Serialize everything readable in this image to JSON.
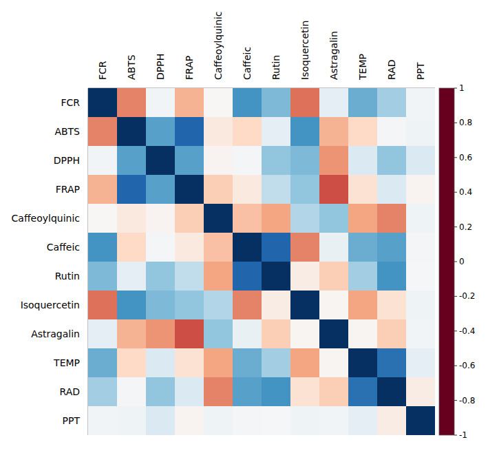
{
  "chart_data": {
    "type": "heatmap",
    "variables": [
      "FCR",
      "ABTS",
      "DPPH",
      "FRAP",
      "Caffeoylquinic",
      "Caffeic",
      "Rutin",
      "Isoquercetin",
      "Astragalin",
      "TEMP",
      "RAD",
      "PPT"
    ],
    "cells": [
      [
        1,
        -0.5,
        0.03,
        -0.35,
        -0.01,
        0.6,
        0.45,
        -0.55,
        0.1,
        0.5,
        0.35,
        0.03
      ],
      [
        -0.5,
        1,
        0.55,
        0.8,
        -0.1,
        -0.2,
        0.1,
        0.6,
        -0.35,
        -0.2,
        0.02,
        0.05
      ],
      [
        0.03,
        0.55,
        1,
        0.55,
        -0.03,
        0.02,
        0.4,
        0.45,
        -0.45,
        0.15,
        0.4,
        0.15
      ],
      [
        -0.35,
        0.8,
        0.55,
        1,
        -0.25,
        -0.1,
        0.25,
        0.4,
        -0.65,
        -0.15,
        0.15,
        -0.03
      ],
      [
        -0.01,
        -0.1,
        -0.03,
        -0.25,
        1,
        -0.3,
        -0.4,
        0.3,
        0.4,
        -0.4,
        -0.5,
        0.05
      ],
      [
        0.6,
        -0.2,
        0.02,
        -0.1,
        -0.3,
        1,
        0.8,
        -0.5,
        0.08,
        0.5,
        0.55,
        0.02
      ],
      [
        0.45,
        0.1,
        0.4,
        0.25,
        -0.4,
        0.8,
        1,
        -0.08,
        -0.25,
        0.35,
        0.6,
        0.01
      ],
      [
        -0.55,
        0.6,
        0.45,
        0.4,
        0.3,
        -0.5,
        -0.08,
        1,
        -0.02,
        -0.4,
        -0.15,
        0.05
      ],
      [
        0.1,
        -0.35,
        -0.45,
        -0.65,
        0.4,
        0.08,
        -0.25,
        -0.02,
        1,
        -0.02,
        -0.25,
        0.03
      ],
      [
        0.5,
        -0.2,
        0.15,
        -0.15,
        -0.4,
        0.5,
        0.35,
        -0.4,
        -0.02,
        1,
        0.75,
        0.1
      ],
      [
        0.35,
        0.02,
        0.4,
        0.15,
        -0.5,
        0.55,
        0.6,
        -0.15,
        -0.25,
        0.75,
        1,
        -0.08
      ],
      [
        0.03,
        0.05,
        0.15,
        -0.03,
        0.05,
        0.02,
        0.01,
        0.05,
        0.03,
        0.1,
        -0.08,
        1
      ]
    ],
    "colorbar": {
      "lim": [
        -1,
        1
      ],
      "ticks": [
        -1,
        -0.8,
        -0.6,
        -0.4,
        -0.2,
        0,
        0.2,
        0.4,
        0.6,
        0.8,
        1
      ]
    }
  }
}
